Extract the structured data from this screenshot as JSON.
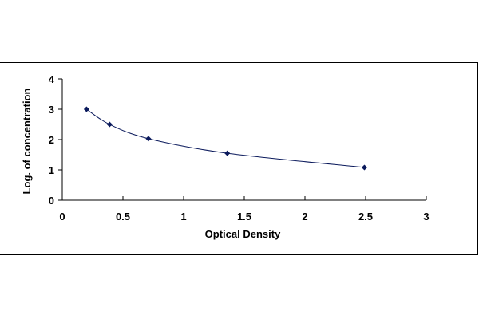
{
  "chart_data": {
    "type": "scatter",
    "title": "",
    "xlabel": "Optical Density",
    "ylabel": "Log. of concentration",
    "xlim": [
      0,
      3
    ],
    "ylim": [
      0,
      4
    ],
    "xticks": [
      "0",
      "0.5",
      "1",
      "1.5",
      "2",
      "2.5",
      "3"
    ],
    "yticks": [
      "0",
      "1",
      "2",
      "3",
      "4"
    ],
    "grid": false,
    "legend": "none",
    "series": [
      {
        "x": [
          0.2,
          0.39,
          0.71,
          1.36,
          2.49
        ],
        "y": [
          3.0,
          2.5,
          2.03,
          1.55,
          1.08
        ],
        "marker": "diamond",
        "trendline": "smooth"
      }
    ],
    "colors": {
      "marker": "#0b1a5c",
      "line": "#0b1a5c",
      "axis": "#000000"
    }
  }
}
